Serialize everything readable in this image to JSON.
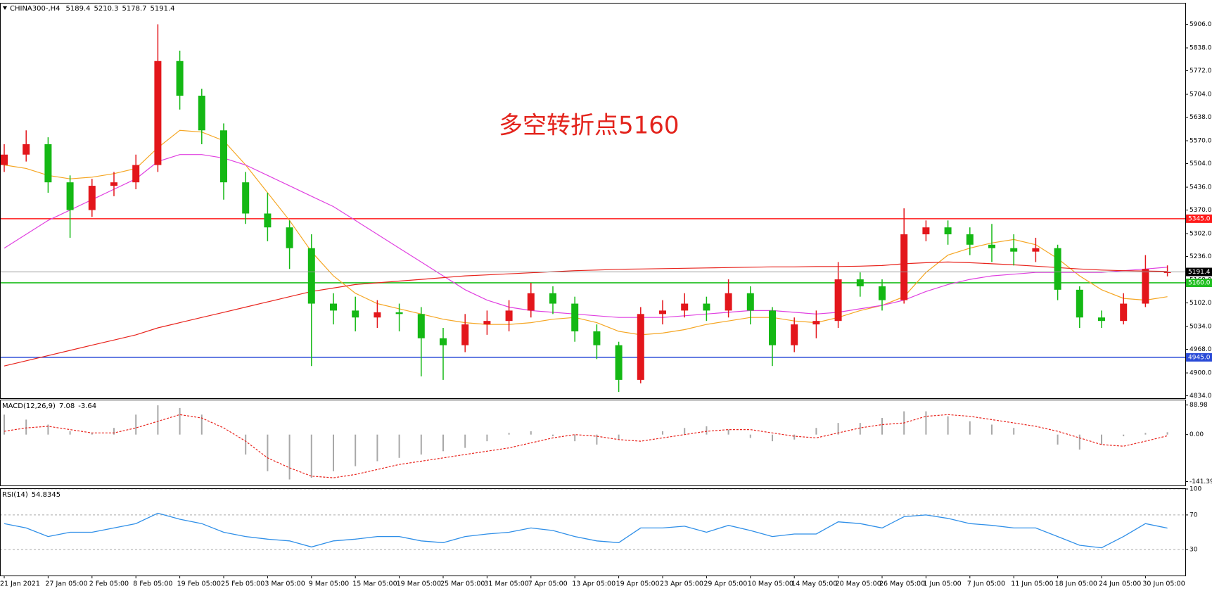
{
  "chart_data": [
    {
      "type": "candlestick",
      "title": "CHINA300-,H4",
      "annotation": "多空转折点5160",
      "categories": [
        "21 Jan 2021",
        null,
        "27 Jan 05:00",
        null,
        "2 Feb 05:00",
        null,
        "8 Feb 05:00",
        null,
        "19 Feb 05:00",
        null,
        "25 Feb 05:00",
        null,
        "3 Mar 05:00",
        null,
        "9 Mar 05:00",
        null,
        "15 Mar 05:00",
        null,
        "19 Mar 05:00",
        null,
        "25 Mar 05:00",
        null,
        "31 Mar 05:00",
        null,
        "7 Apr 05:00",
        null,
        "13 Apr 05:00",
        null,
        "19 Apr 05:00",
        null,
        "23 Apr 05:00",
        null,
        "29 Apr 05:00",
        null,
        "10 May 05:00",
        null,
        "14 May 05:00",
        null,
        "20 May 05:00",
        null,
        "26 May 05:00",
        null,
        "1 Jun 05:00",
        null,
        "7 Jun 05:00",
        null,
        "11 Jun 05:00",
        null,
        "18 Jun 05:00",
        null,
        "24 Jun 05:00",
        null,
        "30 Jun 05:00",
        null
      ],
      "open": [
        5500,
        5530,
        5560,
        5450,
        5370,
        5440,
        5450,
        5500,
        5800,
        5700,
        5600,
        5450,
        5360,
        5320,
        5260,
        5100,
        5080,
        5060,
        5075,
        5070,
        5000,
        4980,
        5040,
        5050,
        5080,
        5130,
        5100,
        5020,
        4980,
        4880,
        5070,
        5080,
        5100,
        5080,
        5130,
        5080,
        4980,
        5040,
        5050,
        5170,
        5150,
        5110,
        5300,
        5320,
        5300,
        5270,
        5260,
        5250,
        5260,
        5140,
        5060,
        5050,
        5100,
        5189.4
      ],
      "high": [
        5560,
        5600,
        5580,
        5470,
        5460,
        5480,
        5530,
        5906,
        5830,
        5720,
        5620,
        5480,
        5420,
        5340,
        5300,
        5130,
        5120,
        5110,
        5100,
        5090,
        5030,
        5070,
        5080,
        5110,
        5160,
        5150,
        5120,
        5040,
        4990,
        5090,
        5110,
        5130,
        5120,
        5170,
        5150,
        5090,
        5060,
        5080,
        5220,
        5190,
        5170,
        5375,
        5340,
        5340,
        5320,
        5330,
        5300,
        5290,
        5270,
        5150,
        5080,
        5130,
        5240,
        5210.3
      ],
      "low": [
        5480,
        5510,
        5420,
        5290,
        5350,
        5410,
        5430,
        5480,
        5660,
        5560,
        5400,
        5330,
        5280,
        5200,
        4920,
        5040,
        5020,
        5030,
        5020,
        4890,
        4880,
        4960,
        5010,
        5020,
        5060,
        5070,
        4990,
        4940,
        4845,
        4870,
        5040,
        5060,
        5050,
        5060,
        5040,
        4920,
        4960,
        5000,
        5030,
        5120,
        5080,
        5100,
        5280,
        5270,
        5240,
        5220,
        5210,
        5220,
        5110,
        5030,
        5030,
        5040,
        5090,
        5178.7
      ],
      "close": [
        5530,
        5560,
        5450,
        5370,
        5440,
        5450,
        5500,
        5800,
        5700,
        5600,
        5450,
        5360,
        5320,
        5260,
        5100,
        5080,
        5060,
        5075,
        5070,
        5000,
        4980,
        5040,
        5050,
        5080,
        5130,
        5100,
        5020,
        4980,
        4880,
        5070,
        5080,
        5100,
        5080,
        5130,
        5080,
        4980,
        5040,
        5050,
        5170,
        5150,
        5110,
        5300,
        5320,
        5300,
        5270,
        5260,
        5250,
        5260,
        5140,
        5060,
        5050,
        5100,
        5200,
        5191.4
      ],
      "up_color": "#e3161b",
      "down_color": "#14b814",
      "series": [
        {
          "color": "#f5a623",
          "values": [
            5500,
            5490,
            5470,
            5460,
            5465,
            5475,
            5490,
            5550,
            5600,
            5595,
            5570,
            5500,
            5420,
            5340,
            5250,
            5180,
            5130,
            5100,
            5085,
            5070,
            5055,
            5045,
            5040,
            5040,
            5045,
            5055,
            5060,
            5045,
            5020,
            5010,
            5015,
            5025,
            5040,
            5050,
            5060,
            5060,
            5050,
            5045,
            5060,
            5080,
            5095,
            5120,
            5190,
            5240,
            5260,
            5275,
            5285,
            5270,
            5230,
            5180,
            5140,
            5115,
            5110,
            5120
          ]
        },
        {
          "color": "#e040e0",
          "values": [
            5260,
            5300,
            5340,
            5370,
            5400,
            5430,
            5460,
            5510,
            5530,
            5530,
            5520,
            5500,
            5470,
            5440,
            5410,
            5380,
            5340,
            5300,
            5260,
            5220,
            5180,
            5140,
            5110,
            5090,
            5080,
            5075,
            5070,
            5065,
            5060,
            5060,
            5060,
            5065,
            5070,
            5075,
            5080,
            5080,
            5075,
            5070,
            5075,
            5085,
            5095,
            5110,
            5135,
            5155,
            5170,
            5180,
            5185,
            5190,
            5190,
            5190,
            5190,
            5195,
            5200,
            5205
          ]
        },
        {
          "color": "#e8231c",
          "values": [
            4920,
            4935,
            4950,
            4965,
            4980,
            4995,
            5010,
            5030,
            5045,
            5060,
            5075,
            5090,
            5105,
            5120,
            5135,
            5145,
            5155,
            5160,
            5165,
            5170,
            5175,
            5180,
            5183,
            5186,
            5189,
            5192,
            5195,
            5197,
            5199,
            5200,
            5201,
            5202,
            5203,
            5204,
            5205,
            5206,
            5206,
            5207,
            5207,
            5208,
            5210,
            5215,
            5218,
            5220,
            5218,
            5215,
            5212,
            5208,
            5204,
            5200,
            5197,
            5195,
            5194,
            5193
          ]
        }
      ],
      "levels": [
        {
          "value": 5345,
          "label": "5345.0",
          "color": "#ff1a1a"
        },
        {
          "value": 5160,
          "label": "5160.0",
          "color": "#1fbf1f"
        },
        {
          "value": 4945,
          "label": "4945.0",
          "color": "#2a4bd7"
        }
      ],
      "ylim": [
        4827,
        5966
      ],
      "yticks": [
        {
          "value": 5906,
          "label": "5906.0"
        },
        {
          "value": 5838,
          "label": "5838.0"
        },
        {
          "value": 5772,
          "label": "5772.0"
        },
        {
          "value": 5704,
          "label": "5704.0"
        },
        {
          "value": 5638,
          "label": "5638.0"
        },
        {
          "value": 5570,
          "label": "5570.0"
        },
        {
          "value": 5504,
          "label": "5504.0"
        },
        {
          "value": 5436,
          "label": "5436.0"
        },
        {
          "value": 5370,
          "label": "5370.0"
        },
        {
          "value": 5302,
          "label": "5302.0"
        },
        {
          "value": 5236,
          "label": "5236.0"
        },
        {
          "value": 5168,
          "label": "5168.0"
        },
        {
          "value": 5102,
          "label": "5102.0"
        },
        {
          "value": 5034,
          "label": "5034.0"
        },
        {
          "value": 4968,
          "label": "4968.0"
        },
        {
          "value": 4900,
          "label": "4900.0"
        },
        {
          "value": 4834,
          "label": "4834.0"
        }
      ]
    },
    {
      "type": "macd",
      "title": "MACD(12,26,9)",
      "color": "#a8a8a8",
      "signal_color": "#e8231c",
      "values": [
        60,
        45,
        30,
        10,
        5,
        20,
        60,
        88,
        80,
        60,
        0,
        -60,
        -110,
        -135,
        -130,
        -110,
        -95,
        -80,
        -70,
        -60,
        -50,
        -40,
        -20,
        5,
        10,
        -5,
        -20,
        -30,
        -15,
        0,
        10,
        20,
        25,
        15,
        -10,
        -20,
        -15,
        20,
        35,
        35,
        50,
        70,
        70,
        55,
        40,
        30,
        20,
        0,
        -30,
        -45,
        -30,
        -5,
        5,
        7.08
      ],
      "signal": [
        10,
        20,
        25,
        15,
        5,
        5,
        20,
        40,
        60,
        50,
        20,
        -20,
        -70,
        -100,
        -125,
        -130,
        -120,
        -105,
        -90,
        -80,
        -70,
        -60,
        -50,
        -40,
        -25,
        -10,
        0,
        -5,
        -15,
        -20,
        -10,
        0,
        10,
        15,
        15,
        5,
        -5,
        -10,
        5,
        20,
        30,
        35,
        55,
        60,
        55,
        45,
        35,
        25,
        10,
        -10,
        -30,
        -35,
        -20,
        -3.64
      ],
      "ylim": [
        -153,
        103
      ],
      "yticks": [
        88.98,
        {
          "value": 0,
          "label": "0.00"
        },
        -141.39
      ]
    },
    {
      "type": "line",
      "title": "RSI(14)",
      "color": "#2f8fe8",
      "grid": true,
      "values": [
        60,
        55,
        45,
        50,
        50,
        55,
        60,
        72,
        65,
        60,
        50,
        45,
        42,
        40,
        33,
        40,
        42,
        45,
        45,
        40,
        38,
        45,
        48,
        50,
        55,
        52,
        45,
        40,
        38,
        55,
        55,
        57,
        50,
        58,
        52,
        45,
        48,
        48,
        62,
        60,
        55,
        68,
        70,
        66,
        60,
        58,
        55,
        55,
        45,
        35,
        32,
        45,
        60,
        54.8345
      ],
      "ylim": [
        0,
        100
      ],
      "yticks": [
        100,
        70,
        30
      ]
    }
  ]
}
